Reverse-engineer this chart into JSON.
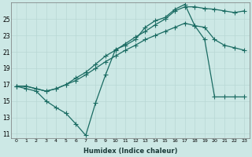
{
  "xlabel": "Humidex (Indice chaleur)",
  "bg_color": "#cce8e5",
  "line_color": "#1a6b62",
  "grid_color": "#b8d8d4",
  "xlim": [
    -0.5,
    23.5
  ],
  "ylim": [
    10.5,
    27
  ],
  "yticks": [
    11,
    13,
    15,
    17,
    19,
    21,
    23,
    25
  ],
  "xticks": [
    0,
    1,
    2,
    3,
    4,
    5,
    6,
    7,
    8,
    9,
    10,
    11,
    12,
    13,
    14,
    15,
    16,
    17,
    18,
    19,
    20,
    21,
    22,
    23
  ],
  "s1_x": [
    0,
    1,
    2,
    3,
    4,
    5,
    6,
    7,
    8,
    9,
    10,
    11,
    12,
    13,
    14,
    15,
    16,
    17,
    18,
    19,
    20,
    21,
    22,
    23
  ],
  "s1_y": [
    16.8,
    16.5,
    16.2,
    15.0,
    14.2,
    13.5,
    12.2,
    10.8,
    14.8,
    18.2,
    21.3,
    21.8,
    22.5,
    24.0,
    24.8,
    25.2,
    26.2,
    26.8,
    24.2,
    22.5,
    15.5,
    15.5,
    15.5,
    15.5
  ],
  "s2_x": [
    0,
    1,
    2,
    3,
    4,
    5,
    6,
    7,
    8,
    9,
    10,
    11,
    12,
    13,
    14,
    15,
    16,
    17,
    18,
    19,
    20,
    21,
    22,
    23
  ],
  "s2_y": [
    16.8,
    16.8,
    16.5,
    16.2,
    16.5,
    17.0,
    17.5,
    18.2,
    19.0,
    19.8,
    20.5,
    21.2,
    21.8,
    22.5,
    23.0,
    23.5,
    24.0,
    24.5,
    24.2,
    24.0,
    22.5,
    21.8,
    21.5,
    21.2
  ],
  "s3_x": [
    0,
    1,
    2,
    3,
    4,
    5,
    6,
    7,
    8,
    9,
    10,
    11,
    12,
    13,
    14,
    15,
    16,
    17,
    18,
    19,
    20,
    21,
    22,
    23
  ],
  "s3_y": [
    16.8,
    16.8,
    16.5,
    16.2,
    16.5,
    17.0,
    17.8,
    18.5,
    19.5,
    20.5,
    21.2,
    22.0,
    22.8,
    23.5,
    24.3,
    25.0,
    26.0,
    26.5,
    26.5,
    26.3,
    26.2,
    26.0,
    25.8,
    26.0
  ]
}
